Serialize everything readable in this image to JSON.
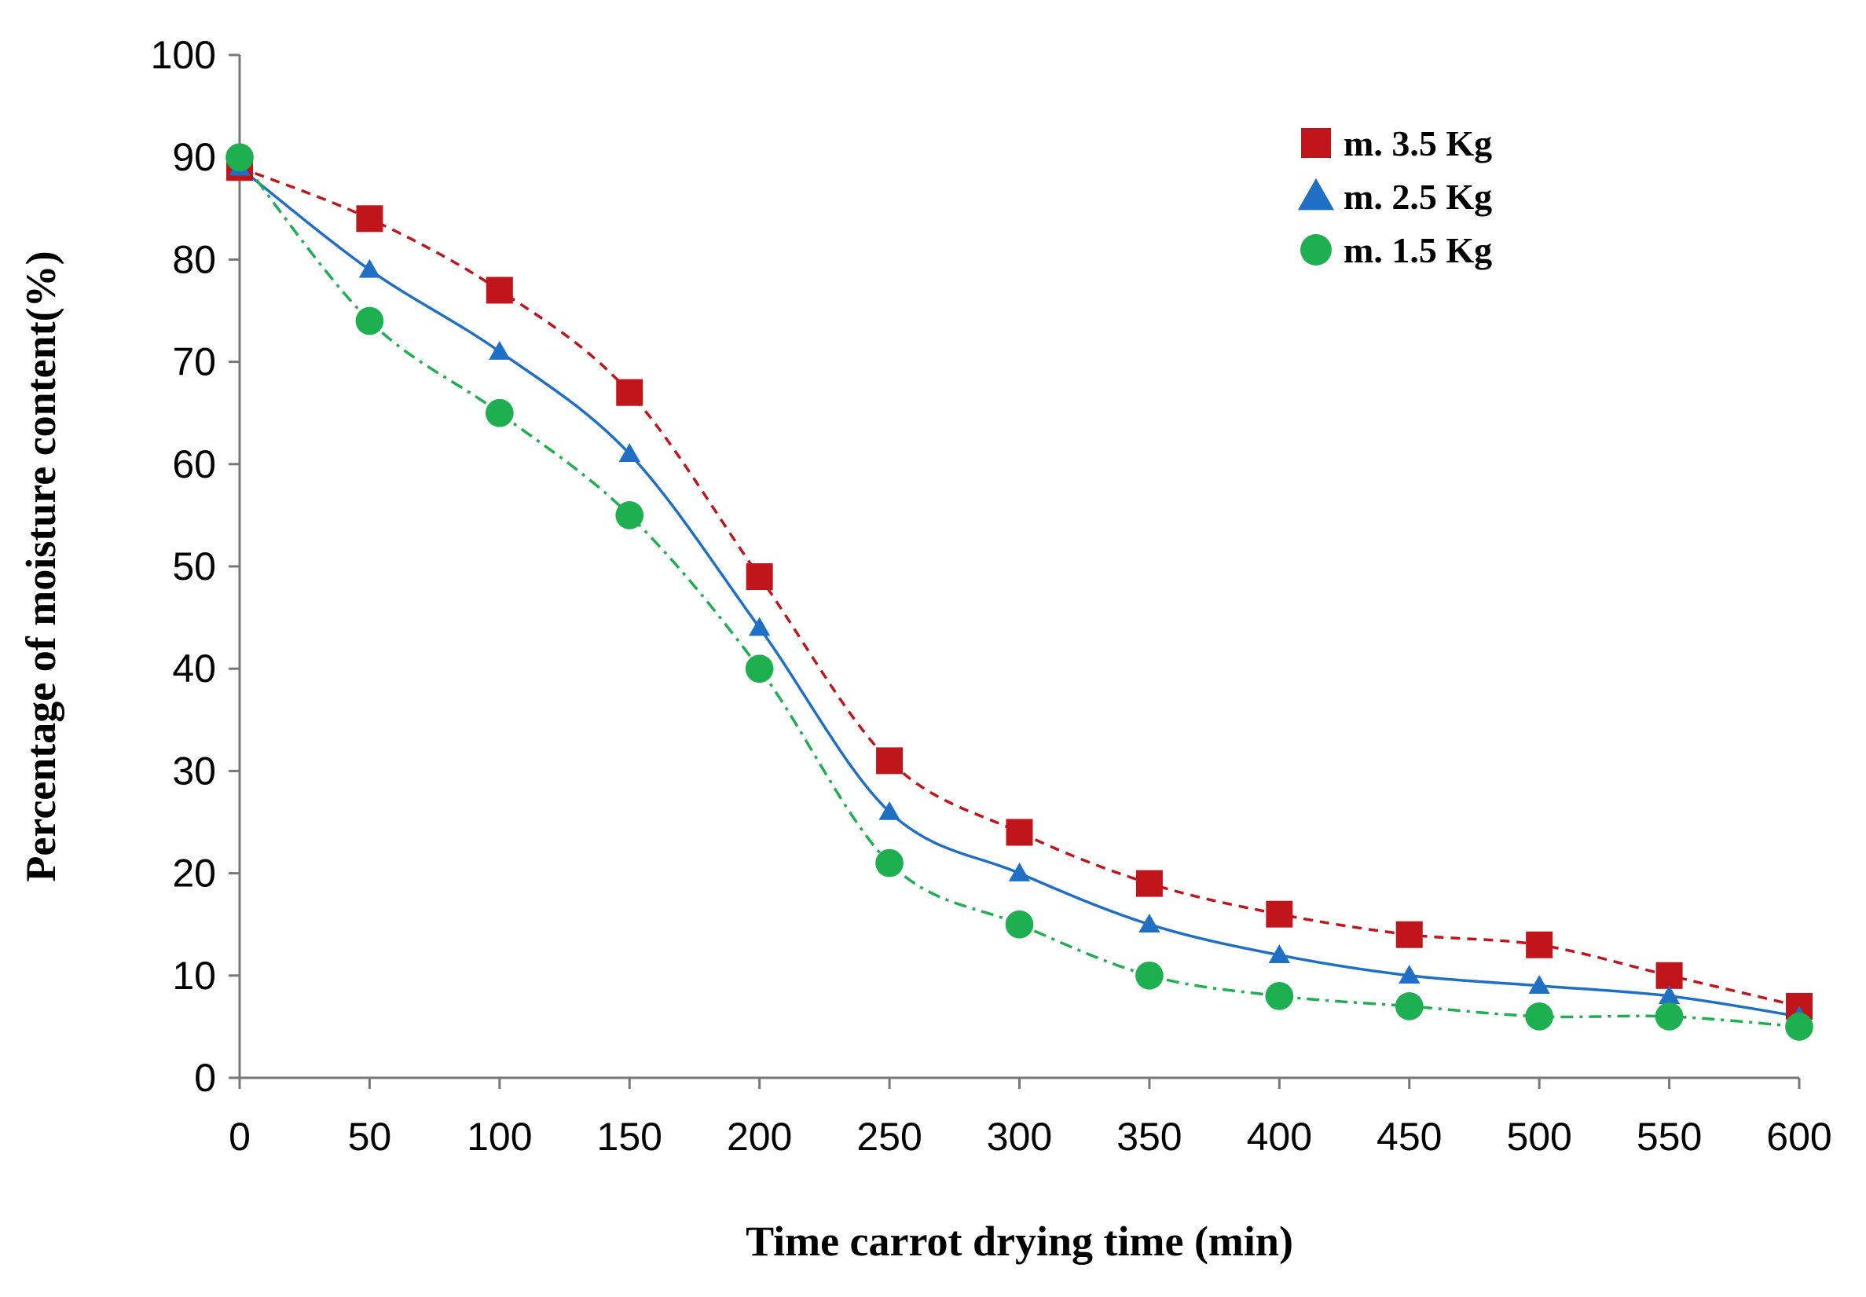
{
  "chart_data": {
    "type": "line",
    "title": "",
    "xlabel": "Time carrot drying time (min)",
    "ylabel": "Percentage of moisture content(%)",
    "x": [
      0,
      50,
      100,
      150,
      200,
      250,
      300,
      350,
      400,
      450,
      500,
      550,
      600
    ],
    "xlim": [
      0,
      600
    ],
    "ylim": [
      0,
      100
    ],
    "xticks": [
      "0",
      "50",
      "100",
      "150",
      "200",
      "250",
      "300",
      "350",
      "400",
      "450",
      "500",
      "550",
      "600"
    ],
    "yticks": [
      "0",
      "10",
      "20",
      "30",
      "40",
      "50",
      "60",
      "70",
      "80",
      "90",
      "100"
    ],
    "grid": false,
    "legend_position": "top-right",
    "series": [
      {
        "name": "m. 3.5 Kg",
        "marker": "square",
        "line_style": "dashed",
        "color": "#C0151B",
        "values": [
          89,
          84,
          77,
          67,
          49,
          31,
          24,
          19,
          16,
          14,
          13,
          10,
          7
        ]
      },
      {
        "name": "m. 2.5 Kg",
        "marker": "triangle",
        "line_style": "solid",
        "color": "#1F6FC5",
        "values": [
          89,
          79,
          71,
          61,
          44,
          26,
          20,
          15,
          12,
          10,
          9,
          8,
          6
        ]
      },
      {
        "name": "m. 1.5 Kg",
        "marker": "circle",
        "line_style": "dash-dot",
        "color": "#1DAF50",
        "values": [
          90,
          74,
          65,
          55,
          40,
          21,
          15,
          10,
          8,
          7,
          6,
          6,
          5
        ]
      }
    ]
  }
}
